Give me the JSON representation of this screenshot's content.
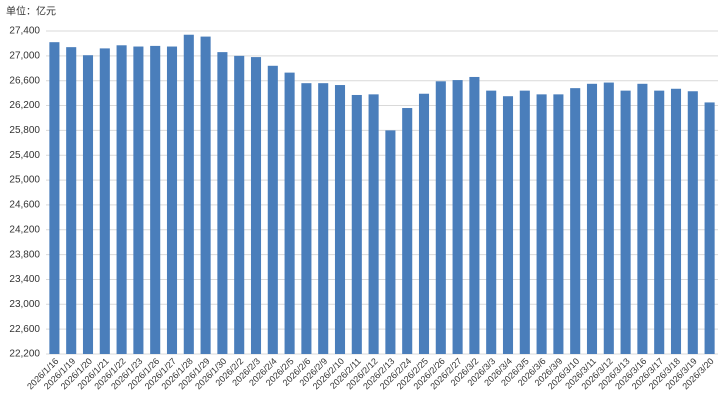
{
  "chart_data": {
    "type": "bar",
    "unit_label": "单位：亿元",
    "categories": [
      "2026/1/16",
      "2026/1/19",
      "2026/1/20",
      "2026/1/21",
      "2026/1/22",
      "2026/1/23",
      "2026/1/26",
      "2026/1/27",
      "2026/1/28",
      "2026/1/29",
      "2026/1/30",
      "2026/2/2",
      "2026/2/3",
      "2026/2/4",
      "2026/2/5",
      "2026/2/6",
      "2026/2/9",
      "2026/2/10",
      "2026/2/11",
      "2026/2/12",
      "2026/2/13",
      "2026/2/24",
      "2026/2/25",
      "2026/2/26",
      "2026/2/27",
      "2026/3/2",
      "2026/3/3",
      "2026/3/4",
      "2026/3/5",
      "2026/3/6",
      "2026/3/9",
      "2026/3/10",
      "2026/3/11",
      "2026/3/12",
      "2026/3/13",
      "2026/3/16",
      "2026/3/17",
      "2026/3/18",
      "2026/3/19",
      "2026/3/20"
    ],
    "values": [
      27220,
      27140,
      27010,
      27120,
      27170,
      27150,
      27160,
      27150,
      27340,
      27310,
      27060,
      27000,
      26980,
      26840,
      26730,
      26560,
      26560,
      26530,
      26370,
      26380,
      25800,
      26160,
      26390,
      26590,
      26610,
      26660,
      26440,
      26350,
      26440,
      26380,
      26380,
      26480,
      26550,
      26570,
      26440,
      26550,
      26440,
      26470,
      26430,
      26250
    ],
    "color": "#4a7ebb",
    "ylim": [
      22200,
      27400
    ],
    "yticks": [
      {
        "value": 22200,
        "label": "22,200"
      },
      {
        "value": 22600,
        "label": "22,600"
      },
      {
        "value": 23000,
        "label": "23,000"
      },
      {
        "value": 23400,
        "label": "23,400"
      },
      {
        "value": 23800,
        "label": "23,800"
      },
      {
        "value": 24200,
        "label": "24,200"
      },
      {
        "value": 24600,
        "label": "24,600"
      },
      {
        "value": 25000,
        "label": "25,000"
      },
      {
        "value": 25400,
        "label": "25,400"
      },
      {
        "value": 25800,
        "label": "25,800"
      },
      {
        "value": 26200,
        "label": "26,200"
      },
      {
        "value": 26600,
        "label": "26,600"
      },
      {
        "value": 27000,
        "label": "27,000"
      },
      {
        "value": 27400,
        "label": "27,400"
      }
    ],
    "grid": true
  }
}
